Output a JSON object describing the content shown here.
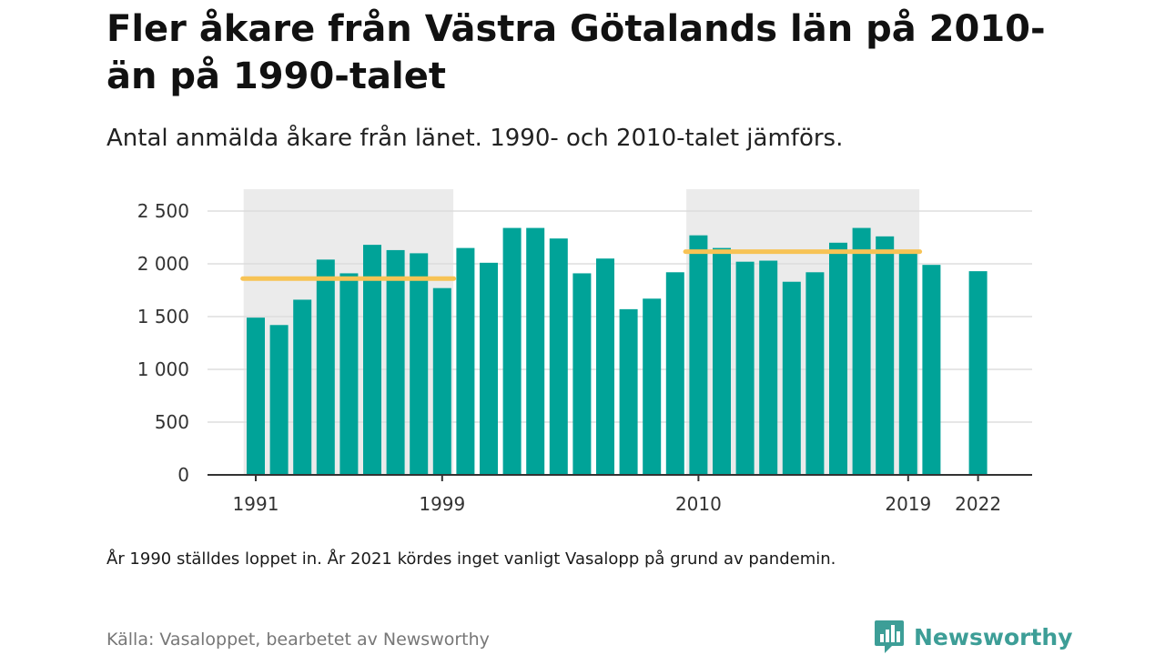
{
  "header": {
    "title": "Fler åkare från Västra Götalands län på 2010- än på 1990-talet",
    "subtitle": "Antal anmälda åkare från länet. 1990- och 2010-talet jämförs."
  },
  "footer": {
    "note": "År 1990 ställdes loppet in. År 2021 kördes inget vanligt Vasalopp på grund av pandemin.",
    "source": "Källa: Vasaloppet, bearbetet av Newsworthy",
    "brand": "Newsworthy",
    "brand_icon": "bar-chart-speech-icon"
  },
  "colors": {
    "bar": "#00a398",
    "average_line": "#f7c355",
    "decade_shade": "#ebebeb",
    "gridline": "#dddddd",
    "axis": "#333333",
    "brand": "#3d9e97"
  },
  "chart_data": {
    "type": "bar",
    "title": "Fler åkare från Västra Götalands län på 2010- än på 1990-talet",
    "subtitle": "Antal anmälda åkare från länet. 1990- och 2010-talet jämförs.",
    "xlabel": "",
    "ylabel": "",
    "ylim": [
      0,
      2500
    ],
    "yticks": [
      {
        "value": 0,
        "label": "0"
      },
      {
        "value": 500,
        "label": "500"
      },
      {
        "value": 1000,
        "label": "1 000"
      },
      {
        "value": 1500,
        "label": "1 500"
      },
      {
        "value": 2000,
        "label": "2 000"
      },
      {
        "value": 2500,
        "label": "2 500"
      }
    ],
    "xrange": [
      1991,
      2022
    ],
    "xticks": [
      1991,
      1999,
      2010,
      2019,
      2022
    ],
    "grid": true,
    "x": [
      1991,
      1992,
      1993,
      1994,
      1995,
      1996,
      1997,
      1998,
      1999,
      2000,
      2001,
      2002,
      2003,
      2004,
      2005,
      2006,
      2007,
      2008,
      2009,
      2010,
      2011,
      2012,
      2013,
      2014,
      2015,
      2016,
      2017,
      2018,
      2019,
      2020,
      2022
    ],
    "values": [
      1490,
      1420,
      1660,
      2040,
      1910,
      2180,
      2130,
      2100,
      1770,
      2150,
      2010,
      2340,
      2340,
      2240,
      1910,
      2050,
      1570,
      1670,
      1920,
      2270,
      2150,
      2020,
      2030,
      1830,
      1920,
      2200,
      2340,
      2260,
      2130,
      1990,
      1930
    ],
    "highlight_periods": [
      {
        "start": 1991,
        "end": 1999,
        "average": 1860
      },
      {
        "start": 2010,
        "end": 2019,
        "average": 2115
      }
    ]
  }
}
